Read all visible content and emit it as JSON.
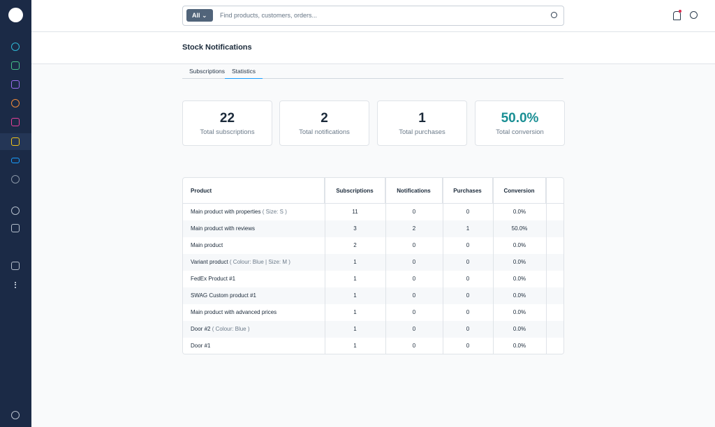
{
  "search": {
    "filter": "All",
    "placeholder": "Find products, customers, orders..."
  },
  "page": {
    "title": "Stock Notifications"
  },
  "tabs": [
    "Subscriptions",
    "Statistics"
  ],
  "stats": [
    {
      "value": "22",
      "label": "Total subscriptions"
    },
    {
      "value": "2",
      "label": "Total notifications"
    },
    {
      "value": "1",
      "label": "Total purchases"
    },
    {
      "value": "50.0%",
      "label": "Total conversion"
    }
  ],
  "table": {
    "headers": [
      "Product",
      "Subscriptions",
      "Notifications",
      "Purchases",
      "Conversion"
    ],
    "rows": [
      {
        "product": "Main product with properties",
        "options": "( Size: S )",
        "subscriptions": "11",
        "notifications": "0",
        "purchases": "0",
        "conversion": "0.0%"
      },
      {
        "product": "Main product with reviews",
        "subscriptions": "3",
        "notifications": "2",
        "purchases": "1",
        "conversion": "50.0%"
      },
      {
        "product": "Main product",
        "subscriptions": "2",
        "notifications": "0",
        "purchases": "0",
        "conversion": "0.0%"
      },
      {
        "product": "Variant product",
        "options": "( Colour: Blue | Size: M )",
        "subscriptions": "1",
        "notifications": "0",
        "purchases": "0",
        "conversion": "0.0%"
      },
      {
        "product": "FedEx Product #1",
        "subscriptions": "1",
        "notifications": "0",
        "purchases": "0",
        "conversion": "0.0%"
      },
      {
        "product": "SWAG Custom product #1",
        "subscriptions": "1",
        "notifications": "0",
        "purchases": "0",
        "conversion": "0.0%"
      },
      {
        "product": "Main product with advanced prices",
        "subscriptions": "1",
        "notifications": "0",
        "purchases": "0",
        "conversion": "0.0%"
      },
      {
        "product": "Door #2",
        "options": "( Colour: Blue )",
        "subscriptions": "1",
        "notifications": "0",
        "purchases": "0",
        "conversion": "0.0%"
      },
      {
        "product": "Door #1",
        "subscriptions": "1",
        "notifications": "0",
        "purchases": "0",
        "conversion": "0.0%"
      }
    ]
  }
}
